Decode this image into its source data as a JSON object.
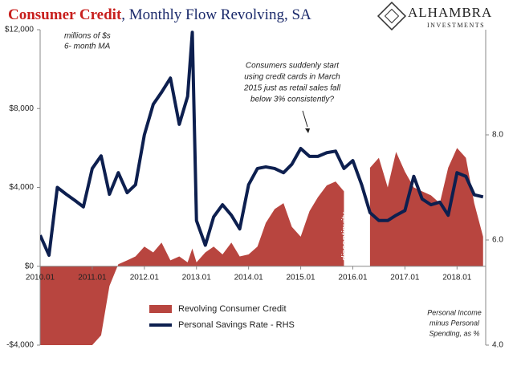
{
  "chart_data": {
    "type": "area-line",
    "title_parts": [
      "Consumer Credit",
      ", Monthly Flow Revolving, SA"
    ],
    "title_colors": [
      "#c8201e",
      "#1b2a6b"
    ],
    "logo": [
      "ALHAMBRA",
      "INVESTMENTS"
    ],
    "annotations": [
      "millions of $s",
      "6- month MA",
      "Consumers suddenly start",
      "using credit cards in March",
      "2015 just as retail sales fall",
      "below 3% consistently?",
      "discontinuity",
      "Personal Income",
      "minus Personal",
      "Spending, as %"
    ],
    "x": [
      2010.0,
      2010.17,
      2010.33,
      2010.5,
      2010.67,
      2010.83,
      2011.0,
      2011.17,
      2011.33,
      2011.5,
      2011.67,
      2011.83,
      2012.0,
      2012.17,
      2012.33,
      2012.5,
      2012.67,
      2012.83,
      2012.92,
      2013.0,
      2013.17,
      2013.33,
      2013.5,
      2013.67,
      2013.83,
      2014.0,
      2014.17,
      2014.33,
      2014.5,
      2014.67,
      2014.83,
      2015.0,
      2015.17,
      2015.33,
      2015.5,
      2015.67,
      2015.83,
      2016.0,
      2016.17,
      2016.33,
      2016.5,
      2016.67,
      2016.83,
      2017.0,
      2017.17,
      2017.33,
      2017.5,
      2017.67,
      2017.83,
      2018.0,
      2018.17,
      2018.33,
      2018.5
    ],
    "xlim": [
      2010,
      2018.55
    ],
    "xticks": [
      {
        "value": 2010,
        "label": "2010.01"
      },
      {
        "value": 2011,
        "label": "2011.01"
      },
      {
        "value": 2012,
        "label": "2012.01"
      },
      {
        "value": 2013,
        "label": "2013.01"
      },
      {
        "value": 2014,
        "label": "2014.01"
      },
      {
        "value": 2015,
        "label": "2015.01"
      },
      {
        "value": 2016,
        "label": "2016.01"
      },
      {
        "value": 2017,
        "label": "2017.01"
      },
      {
        "value": 2018,
        "label": "2018.01"
      }
    ],
    "ylim": [
      -4000,
      12000
    ],
    "yticks": [
      {
        "value": -4000,
        "label": "-$4,000"
      },
      {
        "value": 0,
        "label": "$0"
      },
      {
        "value": 4000,
        "label": "$4,000"
      },
      {
        "value": 8000,
        "label": "$8,000"
      },
      {
        "value": 12000,
        "label": "$12,000"
      }
    ],
    "y2lim": [
      4,
      10
    ],
    "y2ticks": [
      {
        "value": 4,
        "label": "4.0"
      },
      {
        "value": 6,
        "label": "6.0"
      },
      {
        "value": 8,
        "label": "8.0"
      }
    ],
    "series": [
      {
        "name": "Revolving Consumer Credit",
        "color": "#b8453f",
        "kind": "area",
        "values": [
          -4000,
          -4000,
          -4000,
          -4000,
          -4000,
          -4000,
          -4000,
          -3500,
          -1000,
          100,
          300,
          500,
          1000,
          700,
          1200,
          300,
          500,
          200,
          900,
          200,
          700,
          1000,
          600,
          1200,
          500,
          600,
          1000,
          2200,
          2900,
          3200,
          2000,
          1500,
          2800,
          3500,
          4100,
          4300,
          3800,
          null,
          null,
          5000,
          5500,
          4000,
          5800,
          4800,
          4000,
          3800,
          3600,
          3200,
          5000,
          6000,
          5500,
          3200,
          1500
        ]
      },
      {
        "name": "Personal Savings Rate - RHS",
        "color": "#0d1f4f",
        "kind": "line",
        "axis": "y2",
        "values": [
          6.09,
          5.71,
          7.0,
          6.87,
          6.75,
          6.63,
          7.36,
          7.6,
          6.87,
          7.28,
          6.9,
          7.05,
          8.0,
          8.58,
          8.81,
          9.08,
          8.2,
          8.73,
          9.95,
          6.37,
          5.9,
          6.44,
          6.67,
          6.47,
          6.21,
          7.05,
          7.36,
          7.39,
          7.36,
          7.28,
          7.44,
          7.74,
          7.59,
          7.59,
          7.66,
          7.69,
          7.36,
          7.51,
          7.05,
          6.52,
          6.37,
          6.37,
          6.47,
          6.56,
          7.21,
          6.78,
          6.67,
          6.72,
          6.47,
          7.28,
          7.21,
          6.86,
          6.82
        ]
      }
    ]
  }
}
